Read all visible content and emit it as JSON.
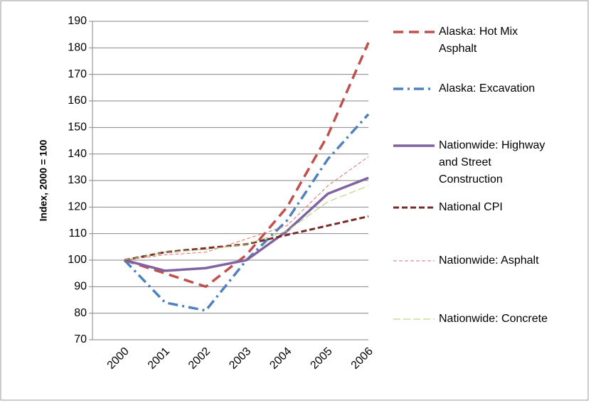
{
  "chart_data": {
    "type": "line",
    "y_label": "Index, 2000 = 100",
    "categories": [
      "2000",
      "2001",
      "2002",
      "2003",
      "2004",
      "2005",
      "2006"
    ],
    "ylim": [
      70,
      190
    ],
    "yticks": [
      70,
      80,
      90,
      100,
      110,
      120,
      130,
      140,
      150,
      160,
      170,
      180,
      190
    ],
    "grid": true,
    "legend": "right",
    "series": [
      {
        "name": "Alaska: Hot Mix Asphalt",
        "color": "#c0504d",
        "values": [
          100,
          95,
          90,
          102,
          120,
          147,
          182
        ]
      },
      {
        "name": "Alaska: Excavation",
        "color": "#4f81bd",
        "values": [
          100,
          84,
          81,
          100,
          115,
          138,
          155
        ]
      },
      {
        "name": "Nationwide: Highway and Street Construction",
        "color": "#8064a2",
        "values": [
          100,
          96,
          97,
          100,
          111,
          125,
          131
        ]
      },
      {
        "name": "National CPI",
        "color": "#772c2a",
        "values": [
          100,
          103,
          104.5,
          106,
          109.5,
          113,
          116.5
        ]
      },
      {
        "name": "Nationwide: Asphalt",
        "color": "#e46c6c",
        "values": [
          100,
          102,
          103,
          108,
          113,
          128,
          139
        ]
      },
      {
        "name": "Nationwide: Concrete",
        "color": "#a8d26a",
        "values": [
          100,
          103,
          104,
          106,
          111,
          122,
          128
        ]
      }
    ]
  }
}
